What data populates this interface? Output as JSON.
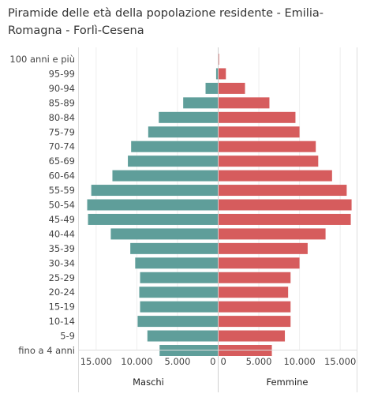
{
  "chart_data": {
    "type": "bar",
    "title": "Piramide delle età della popolazione residente - Emilia-Romagna - Forlì-Cesena",
    "orientation": "horizontal",
    "categories": [
      "100 anni e più",
      "95-99",
      "90-94",
      "85-89",
      "80-84",
      "75-79",
      "70-74",
      "65-69",
      "60-64",
      "55-59",
      "50-54",
      "45-49",
      "40-44",
      "35-39",
      "30-34",
      "25-29",
      "20-24",
      "15-19",
      "10-14",
      "5-9",
      "fino a 4 anni"
    ],
    "series": [
      {
        "name": "Maschi",
        "color": "#5f9e9a",
        "values": [
          30,
          250,
          1550,
          4300,
          7300,
          8600,
          10700,
          11100,
          13000,
          15600,
          16100,
          16000,
          13200,
          10800,
          10200,
          9600,
          9700,
          9600,
          9900,
          8700,
          7200
        ]
      },
      {
        "name": "Femmine",
        "color": "#d65c5d",
        "values": [
          110,
          950,
          3300,
          6300,
          9500,
          10000,
          12000,
          12300,
          14000,
          15800,
          16400,
          16300,
          13200,
          11000,
          10000,
          8900,
          8600,
          8900,
          8900,
          8200,
          6600
        ]
      }
    ],
    "xticks": {
      "left": [
        "15.000",
        "10.000",
        "5.000",
        "0"
      ],
      "right": [
        "0",
        "5.000",
        "10.000",
        "15.000"
      ]
    },
    "xlim": [
      0,
      17000
    ],
    "grid": true
  }
}
